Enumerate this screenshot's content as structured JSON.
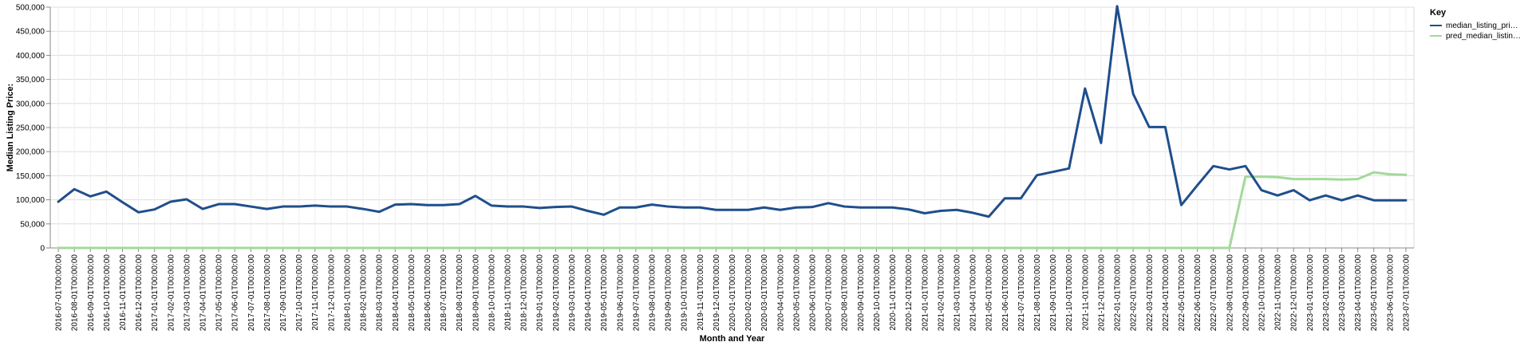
{
  "chart_data": {
    "type": "line",
    "xlabel": "Month and Year",
    "ylabel": "Median Listing Price:",
    "ylim": [
      0,
      500000
    ],
    "y_ticks": [
      "0",
      "50,000",
      "100,000",
      "150,000",
      "200,000",
      "250,000",
      "300,000",
      "350,000",
      "400,000",
      "450,000",
      "500,000"
    ],
    "grid": true,
    "legend": {
      "title": "Key",
      "placement": "top-right"
    },
    "categories": [
      "2016-07-01T00:00:00",
      "2016-08-01T00:00:00",
      "2016-09-01T00:00:00",
      "2016-10-01T00:00:00",
      "2016-11-01T00:00:00",
      "2016-12-01T00:00:00",
      "2017-01-01T00:00:00",
      "2017-02-01T00:00:00",
      "2017-03-01T00:00:00",
      "2017-04-01T00:00:00",
      "2017-05-01T00:00:00",
      "2017-06-01T00:00:00",
      "2017-07-01T00:00:00",
      "2017-08-01T00:00:00",
      "2017-09-01T00:00:00",
      "2017-10-01T00:00:00",
      "2017-11-01T00:00:00",
      "2017-12-01T00:00:00",
      "2018-01-01T00:00:00",
      "2018-02-01T00:00:00",
      "2018-03-01T00:00:00",
      "2018-04-01T00:00:00",
      "2018-05-01T00:00:00",
      "2018-06-01T00:00:00",
      "2018-07-01T00:00:00",
      "2018-08-01T00:00:00",
      "2018-09-01T00:00:00",
      "2018-10-01T00:00:00",
      "2018-11-01T00:00:00",
      "2018-12-01T00:00:00",
      "2019-01-01T00:00:00",
      "2019-02-01T00:00:00",
      "2019-03-01T00:00:00",
      "2019-04-01T00:00:00",
      "2019-05-01T00:00:00",
      "2019-06-01T00:00:00",
      "2019-07-01T00:00:00",
      "2019-08-01T00:00:00",
      "2019-09-01T00:00:00",
      "2019-10-01T00:00:00",
      "2019-11-01T00:00:00",
      "2019-12-01T00:00:00",
      "2020-01-01T00:00:00",
      "2020-02-01T00:00:00",
      "2020-03-01T00:00:00",
      "2020-04-01T00:00:00",
      "2020-05-01T00:00:00",
      "2020-06-01T00:00:00",
      "2020-07-01T00:00:00",
      "2020-08-01T00:00:00",
      "2020-09-01T00:00:00",
      "2020-10-01T00:00:00",
      "2020-11-01T00:00:00",
      "2020-12-01T00:00:00",
      "2021-01-01T00:00:00",
      "2021-02-01T00:00:00",
      "2021-03-01T00:00:00",
      "2021-04-01T00:00:00",
      "2021-05-01T00:00:00",
      "2021-06-01T00:00:00",
      "2021-07-01T00:00:00",
      "2021-08-01T00:00:00",
      "2021-09-01T00:00:00",
      "2021-10-01T00:00:00",
      "2021-11-01T00:00:00",
      "2021-12-01T00:00:00",
      "2022-01-01T00:00:00",
      "2022-02-01T00:00:00",
      "2022-03-01T00:00:00",
      "2022-04-01T00:00:00",
      "2022-05-01T00:00:00",
      "2022-06-01T00:00:00",
      "2022-07-01T00:00:00",
      "2022-08-01T00:00:00",
      "2022-09-01T00:00:00",
      "2022-10-01T00:00:00",
      "2022-11-01T00:00:00",
      "2022-12-01T00:00:00",
      "2023-01-01T00:00:00",
      "2023-02-01T00:00:00",
      "2023-03-01T00:00:00",
      "2023-04-01T00:00:00",
      "2023-05-01T00:00:00",
      "2023-06-01T00:00:00",
      "2023-07-01T00:00:00"
    ],
    "series": [
      {
        "name": "median_listing_pri…",
        "color": "#1f4e8c",
        "values": [
          96000,
          122000,
          107000,
          117000,
          95000,
          74000,
          80000,
          96000,
          101000,
          81000,
          91000,
          91000,
          86000,
          81000,
          86000,
          86000,
          88000,
          86000,
          86000,
          81000,
          75000,
          90000,
          91000,
          89000,
          89000,
          91000,
          108000,
          88000,
          86000,
          86000,
          83000,
          85000,
          86000,
          77000,
          69000,
          84000,
          84000,
          90000,
          86000,
          84000,
          84000,
          79000,
          79000,
          79000,
          84000,
          79000,
          84000,
          85000,
          93000,
          86000,
          84000,
          84000,
          84000,
          80000,
          72000,
          77000,
          79000,
          73000,
          65000,
          103000,
          103000,
          151000,
          158000,
          165000,
          331000,
          218000,
          502000,
          320000,
          251000,
          251000,
          89000,
          130000,
          170000,
          163000,
          170000,
          120000,
          109000,
          120000,
          99000,
          109000,
          99000,
          109000,
          99000,
          99000,
          99000
        ]
      },
      {
        "name": "pred_median_listin…",
        "color": "#a3d99a",
        "values": [
          0,
          0,
          0,
          0,
          0,
          0,
          0,
          0,
          0,
          0,
          0,
          0,
          0,
          0,
          0,
          0,
          0,
          0,
          0,
          0,
          0,
          0,
          0,
          0,
          0,
          0,
          0,
          0,
          0,
          0,
          0,
          0,
          0,
          0,
          0,
          0,
          0,
          0,
          0,
          0,
          0,
          0,
          0,
          0,
          0,
          0,
          0,
          0,
          0,
          0,
          0,
          0,
          0,
          0,
          0,
          0,
          0,
          0,
          0,
          0,
          0,
          0,
          0,
          0,
          0,
          0,
          0,
          0,
          0,
          0,
          0,
          0,
          0,
          0,
          148000,
          148000,
          147000,
          143000,
          143000,
          143000,
          142000,
          143000,
          157000,
          153000,
          152000
        ]
      }
    ]
  }
}
